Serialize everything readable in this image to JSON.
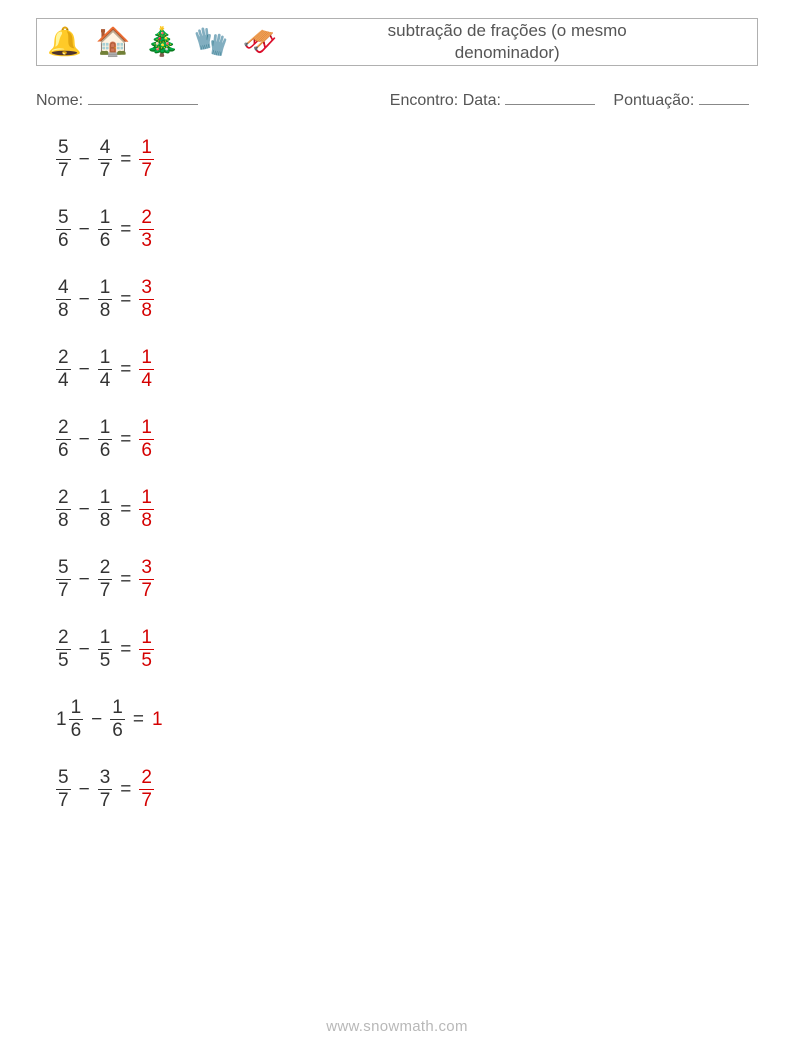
{
  "header": {
    "icons": [
      "🔔",
      "🏠",
      "🎄",
      "🧤",
      "🛷"
    ],
    "title_line1": "subtração de frações (o mesmo",
    "title_line2": "denominador)"
  },
  "meta": {
    "name_label": "Nome:",
    "encounter_label": "Encontro: Data:",
    "score_label": "Pontuação:"
  },
  "colors": {
    "text": "#333333",
    "answer": "#d40000",
    "border": "#b0b0b0",
    "footer": "#b8b8b8"
  },
  "typography": {
    "title_fontsize": 17,
    "meta_fontsize": 16,
    "problem_fontsize": 19,
    "footer_fontsize": 15
  },
  "problems": [
    {
      "a_whole": null,
      "a_num": 5,
      "a_den": 7,
      "b_num": 4,
      "b_den": 7,
      "ans_whole": null,
      "ans_num": 1,
      "ans_den": 7
    },
    {
      "a_whole": null,
      "a_num": 5,
      "a_den": 6,
      "b_num": 1,
      "b_den": 6,
      "ans_whole": null,
      "ans_num": 2,
      "ans_den": 3
    },
    {
      "a_whole": null,
      "a_num": 4,
      "a_den": 8,
      "b_num": 1,
      "b_den": 8,
      "ans_whole": null,
      "ans_num": 3,
      "ans_den": 8
    },
    {
      "a_whole": null,
      "a_num": 2,
      "a_den": 4,
      "b_num": 1,
      "b_den": 4,
      "ans_whole": null,
      "ans_num": 1,
      "ans_den": 4
    },
    {
      "a_whole": null,
      "a_num": 2,
      "a_den": 6,
      "b_num": 1,
      "b_den": 6,
      "ans_whole": null,
      "ans_num": 1,
      "ans_den": 6
    },
    {
      "a_whole": null,
      "a_num": 2,
      "a_den": 8,
      "b_num": 1,
      "b_den": 8,
      "ans_whole": null,
      "ans_num": 1,
      "ans_den": 8
    },
    {
      "a_whole": null,
      "a_num": 5,
      "a_den": 7,
      "b_num": 2,
      "b_den": 7,
      "ans_whole": null,
      "ans_num": 3,
      "ans_den": 7
    },
    {
      "a_whole": null,
      "a_num": 2,
      "a_den": 5,
      "b_num": 1,
      "b_den": 5,
      "ans_whole": null,
      "ans_num": 1,
      "ans_den": 5
    },
    {
      "a_whole": 1,
      "a_num": 1,
      "a_den": 6,
      "b_num": 1,
      "b_den": 6,
      "ans_whole": 1,
      "ans_num": null,
      "ans_den": null
    },
    {
      "a_whole": null,
      "a_num": 5,
      "a_den": 7,
      "b_num": 3,
      "b_den": 7,
      "ans_whole": null,
      "ans_num": 2,
      "ans_den": 7
    }
  ],
  "operator": "−",
  "equals": "=",
  "footer": "www.snowmath.com"
}
